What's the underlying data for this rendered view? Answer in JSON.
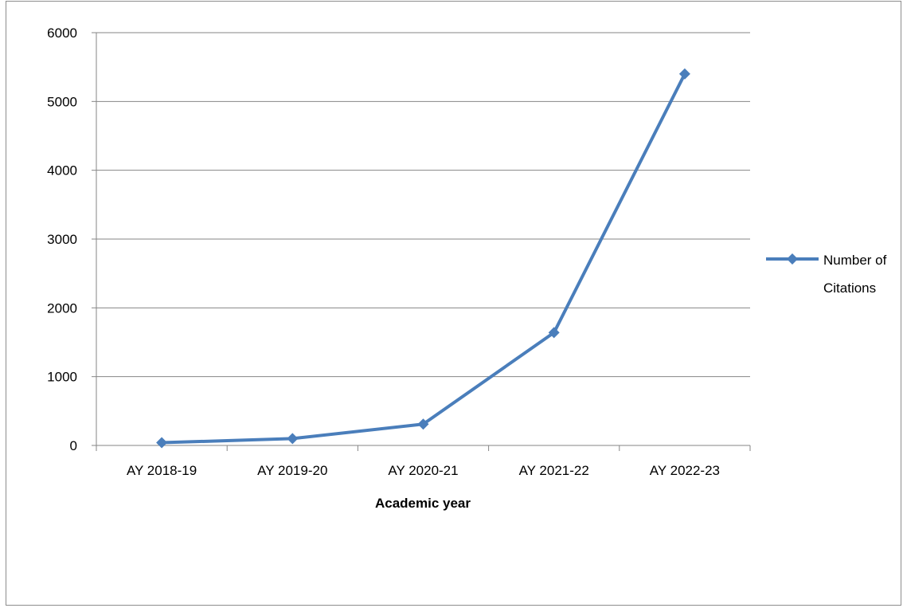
{
  "chart_data": {
    "type": "line",
    "title": "",
    "xlabel": "Academic year",
    "ylabel": "",
    "categories": [
      "AY 2018-19",
      "AY 2019-20",
      "AY 2020-21",
      "AY 2021-22",
      "AY 2022-23"
    ],
    "series": [
      {
        "name": "Number of Citations",
        "values": [
          40,
          100,
          310,
          1640,
          5400
        ],
        "color": "#4a7ebb"
      }
    ],
    "ylim": [
      0,
      6000
    ],
    "yticks": [
      0,
      1000,
      2000,
      3000,
      4000,
      5000,
      6000
    ],
    "grid": true,
    "legend": "right",
    "legend_lines": [
      "Number of",
      "Citations"
    ],
    "colors": {
      "gridline": "#868686",
      "axis": "#868686",
      "series": "#4a7ebb"
    }
  }
}
